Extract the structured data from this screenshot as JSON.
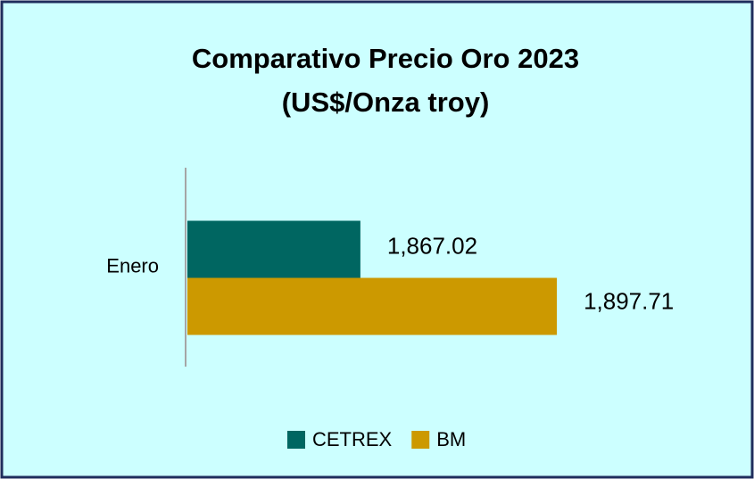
{
  "chart_data": {
    "type": "hbar",
    "title": "Comparativo  Precio Oro 2023",
    "subtitle": "(US$/Onza troy)",
    "categories": [
      "Enero"
    ],
    "series": [
      {
        "name": "CETREX",
        "color": "#006661",
        "values": [
          1867.02
        ],
        "value_labels": [
          "1,867.02"
        ]
      },
      {
        "name": "BM",
        "color": "#cc9900",
        "values": [
          1897.71
        ],
        "value_labels": [
          "1,897.71"
        ]
      }
    ],
    "xlim": [
      1840,
      1920
    ],
    "legend": "bottom"
  }
}
